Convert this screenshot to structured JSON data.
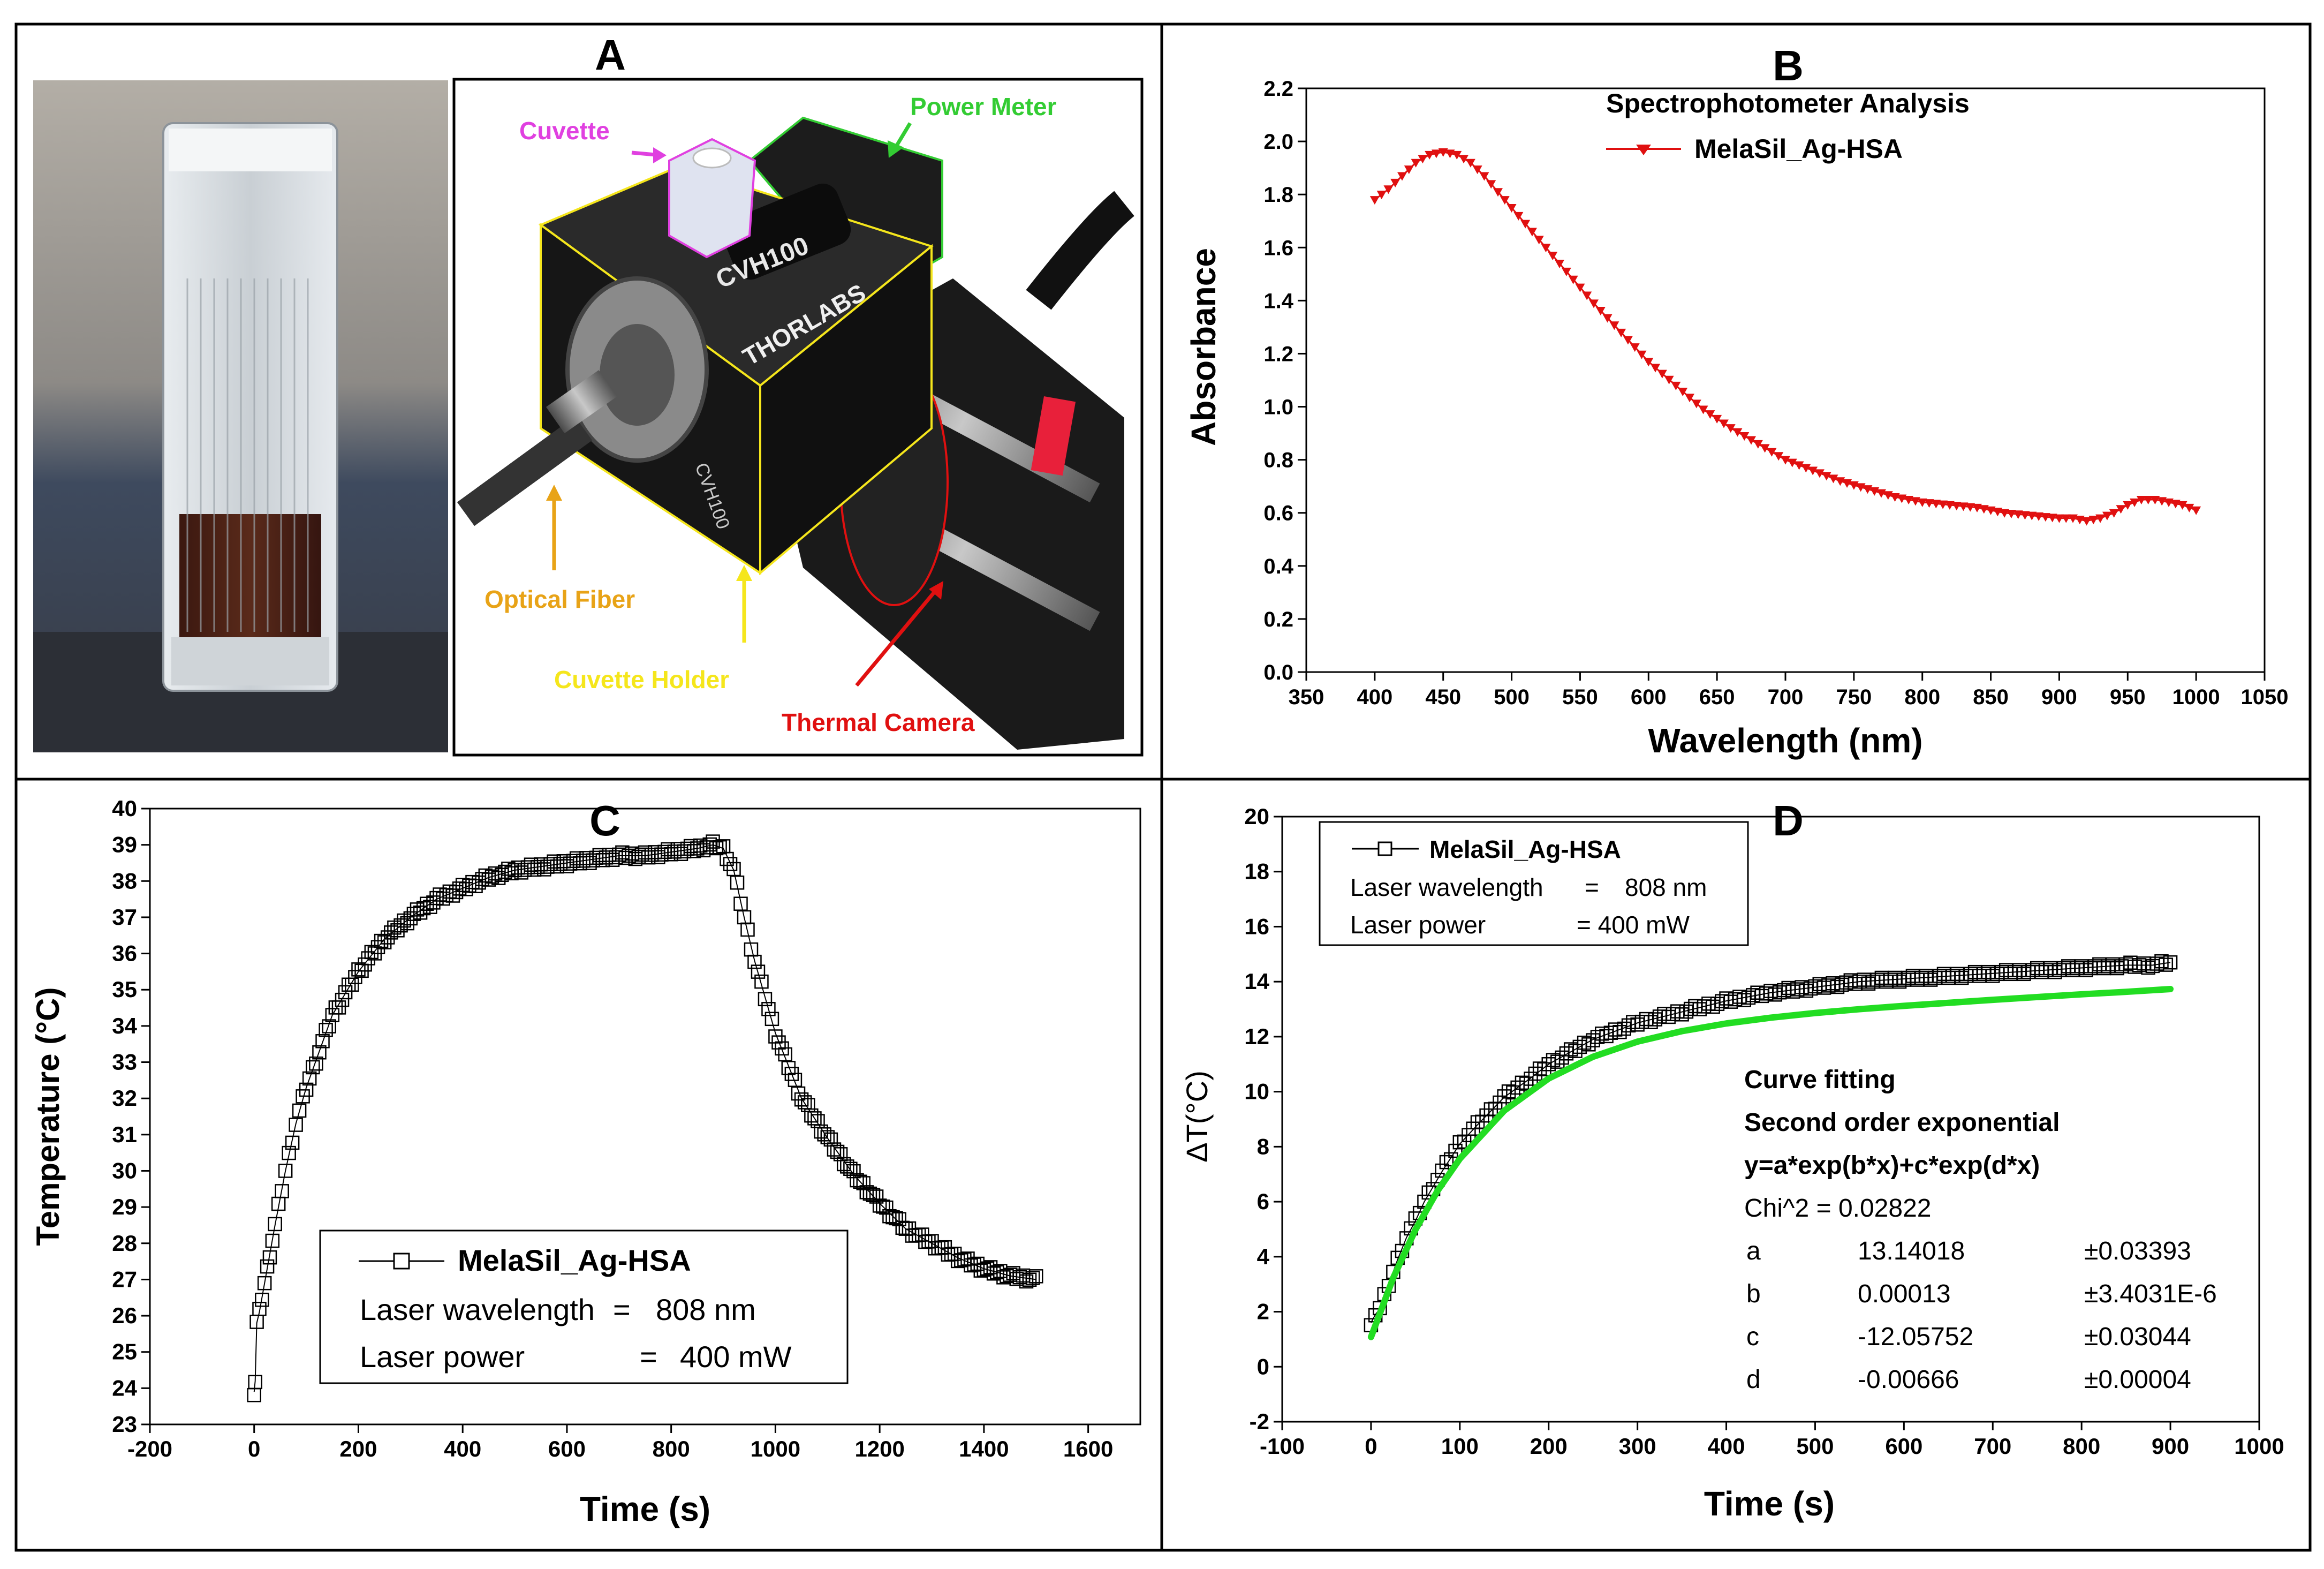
{
  "panel_labels": {
    "a": "A",
    "b": "B",
    "c": "C",
    "d": "D"
  },
  "panel_a": {
    "callouts": {
      "cuvette": "Cuvette",
      "power_meter": "Power Meter",
      "optical_fiber": "Optical Fiber",
      "cuvette_holder": "Cuvette Holder",
      "thermal_camera": "Thermal Camera"
    },
    "device_text": {
      "model": "CVH100",
      "brand": "THORLABS",
      "side": "CVH100"
    },
    "colors": {
      "cuvette": "#e040e0",
      "power_meter": "#33cc33",
      "optical_fiber": "#e8a317",
      "cuvette_holder": "#f5e61c",
      "thermal_camera": "#e01010"
    }
  },
  "chart_data": [
    {
      "id": "B",
      "type": "line",
      "title": "Spectrophotometer Analysis",
      "xlabel": "Wavelength (nm)",
      "ylabel": "Absorbance",
      "xlim": [
        350,
        1050
      ],
      "ylim": [
        0.0,
        2.2
      ],
      "xticks": [
        "350",
        "400",
        "450",
        "500",
        "550",
        "600",
        "650",
        "700",
        "750",
        "800",
        "850",
        "900",
        "950",
        "1000",
        "1050"
      ],
      "yticks": [
        "0.0",
        "0.2",
        "0.4",
        "0.6",
        "0.8",
        "1.0",
        "1.2",
        "1.4",
        "1.6",
        "1.8",
        "2.0",
        "2.2"
      ],
      "legend": {
        "position": "top-center",
        "entries": [
          "MelaSil_Ag-HSA"
        ]
      },
      "marker": "triangle-down",
      "color": "#e01010",
      "series": [
        {
          "name": "MelaSil_Ag-HSA",
          "x": [
            400,
            410,
            420,
            430,
            440,
            450,
            460,
            470,
            480,
            490,
            500,
            520,
            540,
            560,
            580,
            600,
            620,
            640,
            660,
            680,
            700,
            720,
            740,
            760,
            780,
            800,
            820,
            840,
            860,
            880,
            900,
            910,
            920,
            930,
            940,
            950,
            960,
            970,
            980,
            990,
            1000
          ],
          "y": [
            1.78,
            1.82,
            1.87,
            1.92,
            1.95,
            1.96,
            1.95,
            1.92,
            1.87,
            1.81,
            1.75,
            1.63,
            1.51,
            1.39,
            1.28,
            1.17,
            1.08,
            0.99,
            0.92,
            0.86,
            0.8,
            0.76,
            0.72,
            0.69,
            0.66,
            0.64,
            0.63,
            0.62,
            0.6,
            0.59,
            0.58,
            0.58,
            0.57,
            0.58,
            0.6,
            0.63,
            0.65,
            0.65,
            0.64,
            0.63,
            0.61
          ]
        }
      ]
    },
    {
      "id": "C",
      "type": "scatter",
      "xlabel": "Time (s)",
      "ylabel": "Temperature (°C)",
      "xlim": [
        -200,
        1700
      ],
      "ylim": [
        23,
        40
      ],
      "xticks": [
        "-200",
        "0",
        "200",
        "400",
        "600",
        "800",
        "1000",
        "1200",
        "1400",
        "1600"
      ],
      "yticks": [
        "23",
        "24",
        "25",
        "26",
        "27",
        "28",
        "29",
        "30",
        "31",
        "32",
        "33",
        "34",
        "35",
        "36",
        "37",
        "38",
        "39",
        "40"
      ],
      "legend": {
        "position": "bottom-center",
        "entries": [
          "MelaSil_Ag-HSA"
        ],
        "lines": [
          {
            "label": "Laser wavelength",
            "eq": "=",
            "value": "808 nm"
          },
          {
            "label": "Laser power",
            "eq": "=",
            "value": "400 mW"
          }
        ]
      },
      "marker": "open-square",
      "color": "#000000",
      "series": [
        {
          "name": "MelaSil_Ag-HSA",
          "x": [
            0,
            2,
            5,
            10,
            20,
            30,
            40,
            60,
            80,
            100,
            150,
            200,
            250,
            300,
            350,
            400,
            450,
            500,
            550,
            600,
            650,
            700,
            750,
            800,
            850,
            880,
            900,
            920,
            940,
            960,
            980,
            1000,
            1050,
            1100,
            1150,
            1200,
            1250,
            1300,
            1350,
            1400,
            1450,
            1500
          ],
          "y": [
            23.9,
            24.2,
            25.8,
            26.1,
            26.9,
            27.7,
            28.5,
            30.0,
            31.3,
            32.3,
            34.3,
            35.5,
            36.4,
            37.0,
            37.5,
            37.8,
            38.1,
            38.3,
            38.4,
            38.5,
            38.6,
            38.7,
            38.7,
            38.8,
            38.9,
            39.0,
            38.9,
            38.3,
            37.0,
            35.8,
            34.8,
            33.8,
            32.0,
            30.9,
            29.9,
            29.1,
            28.4,
            28.0,
            27.6,
            27.3,
            27.1,
            27.0
          ]
        }
      ]
    },
    {
      "id": "D",
      "type": "scatter",
      "xlabel": "Time (s)",
      "ylabel": "ΔT(°C)",
      "xlim": [
        -100,
        1000
      ],
      "ylim": [
        -2,
        20
      ],
      "xticks": [
        "-100",
        "0",
        "100",
        "200",
        "300",
        "400",
        "500",
        "600",
        "700",
        "800",
        "900",
        "1000"
      ],
      "yticks": [
        "-2",
        "0",
        "2",
        "4",
        "6",
        "8",
        "10",
        "12",
        "14",
        "16",
        "18",
        "20"
      ],
      "legend": {
        "position": "top-left",
        "entries": [
          "MelaSil_Ag-HSA"
        ],
        "lines": [
          {
            "label": "Laser wavelength",
            "eq": "=",
            "value": "808 nm"
          },
          {
            "label": "Laser power",
            "eq": "",
            "value": "= 400 mW"
          }
        ]
      },
      "marker": "open-square",
      "color": "#000000",
      "fit_color": "#22dd22",
      "series": [
        {
          "name": "MelaSil_Ag-HSA",
          "x": [
            0,
            5,
            10,
            20,
            30,
            40,
            50,
            60,
            80,
            100,
            120,
            150,
            180,
            200,
            250,
            300,
            350,
            400,
            450,
            500,
            550,
            600,
            650,
            700,
            750,
            800,
            850,
            880,
            900
          ],
          "y": [
            1.6,
            1.9,
            2.1,
            3.0,
            3.9,
            4.7,
            5.3,
            6.0,
            7.1,
            8.1,
            8.8,
            9.8,
            10.5,
            11.0,
            11.9,
            12.5,
            12.9,
            13.3,
            13.6,
            13.8,
            14.0,
            14.1,
            14.2,
            14.3,
            14.4,
            14.5,
            14.6,
            14.6,
            14.7
          ]
        },
        {
          "name": "Fit",
          "x": [
            0,
            25,
            50,
            75,
            100,
            150,
            200,
            250,
            300,
            350,
            400,
            450,
            500,
            550,
            600,
            650,
            700,
            750,
            800,
            850,
            900
          ],
          "y": [
            1.08,
            3.23,
            4.98,
            6.4,
            7.56,
            9.31,
            10.48,
            11.27,
            11.82,
            12.2,
            12.48,
            12.69,
            12.86,
            13.0,
            13.12,
            13.23,
            13.34,
            13.44,
            13.54,
            13.63,
            13.73
          ]
        }
      ],
      "fit_box": {
        "title": "Curve fitting",
        "subtitle": "Second order exponential",
        "equation": "y=a*exp(b*x)+c*exp(d*x)",
        "chi": "Chi^2 = 0.02822",
        "params": [
          {
            "name": "a",
            "value": "13.14018",
            "err": "±0.03393"
          },
          {
            "name": "b",
            "value": "0.00013",
            "err": "±3.4031E-6"
          },
          {
            "name": "c",
            "value": "-12.05752",
            "err": "±0.03044"
          },
          {
            "name": "d",
            "value": "-0.00666",
            "err": "±0.00004"
          }
        ]
      }
    }
  ]
}
